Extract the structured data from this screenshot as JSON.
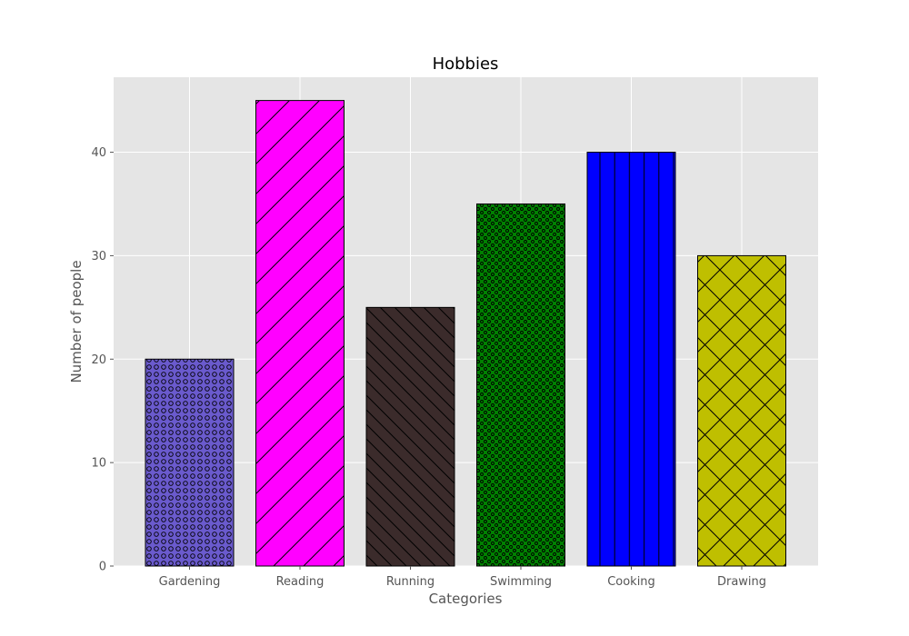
{
  "chart_data": {
    "type": "bar",
    "title": "Hobbies",
    "xlabel": "Categories",
    "ylabel": "Number of people",
    "categories": [
      "Gardening",
      "Reading",
      "Running",
      "Swimming",
      "Cooking",
      "Drawing"
    ],
    "values": [
      20,
      45,
      25,
      35,
      40,
      30
    ],
    "ylim": [
      0,
      47.25
    ],
    "yticks": [
      0,
      10,
      20,
      30,
      40
    ],
    "grid": true,
    "style": "ggplot",
    "plot_background": "#e5e5e5",
    "bars": [
      {
        "color": "#6a5acd",
        "hatch": "circles"
      },
      {
        "color": "#ff00ff",
        "hatch": "forward-diagonal"
      },
      {
        "color": "#3b2b2b",
        "hatch": "back-diagonal"
      },
      {
        "color": "#008000",
        "hatch": "dots"
      },
      {
        "color": "#0000ff",
        "hatch": "vertical"
      },
      {
        "color": "#bfbf00",
        "hatch": "crosshatch"
      }
    ]
  }
}
